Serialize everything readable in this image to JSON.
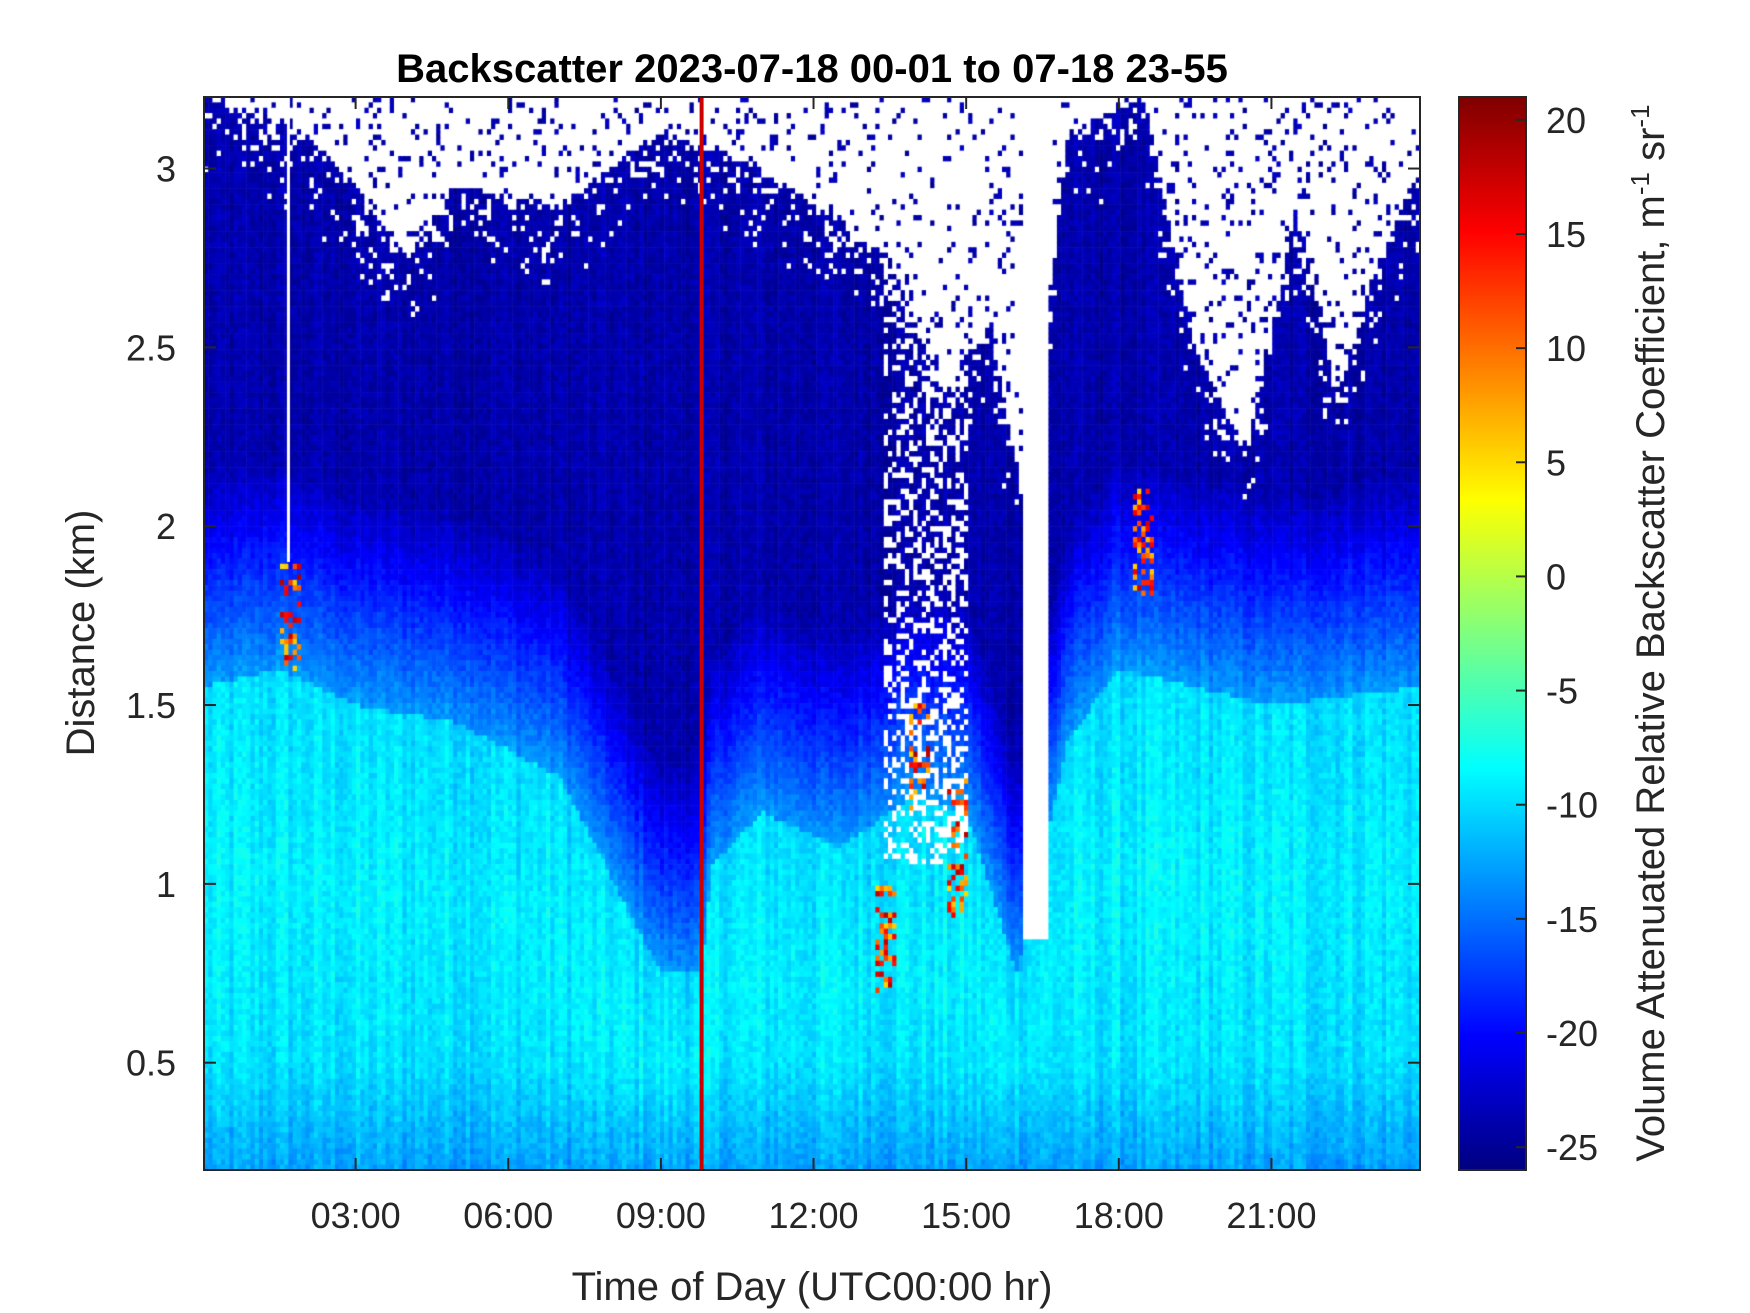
{
  "chart_data": {
    "type": "heatmap",
    "title": "Backscatter 2023-07-18 00-01 to 07-18 23-55",
    "xlabel": "Time of Day (UTC00:00 hr)",
    "ylabel": "Distance (km)",
    "colorbar_label": "Volume Attenuated Relative Backscatter Coefficient, m",
    "colorbar_label_parts": [
      "Volume Attenuated Relative Backscatter Coefficient, m",
      "-1",
      " sr",
      "-1"
    ],
    "colormap": "jet",
    "x_range_hours": [
      0.02,
      23.92
    ],
    "y_range_km": [
      0.2,
      3.2
    ],
    "color_range": [
      -26,
      21
    ],
    "x_ticks": [
      {
        "hour": 3,
        "label": "03:00"
      },
      {
        "hour": 6,
        "label": "06:00"
      },
      {
        "hour": 9,
        "label": "09:00"
      },
      {
        "hour": 12,
        "label": "12:00"
      },
      {
        "hour": 15,
        "label": "15:00"
      },
      {
        "hour": 18,
        "label": "18:00"
      },
      {
        "hour": 21,
        "label": "21:00"
      }
    ],
    "y_ticks": [
      {
        "km": 0.5,
        "label": "0.5"
      },
      {
        "km": 1,
        "label": "1"
      },
      {
        "km": 1.5,
        "label": "1.5"
      },
      {
        "km": 2,
        "label": "2"
      },
      {
        "km": 2.5,
        "label": "2.5"
      },
      {
        "km": 3,
        "label": "3"
      }
    ],
    "colorbar_ticks": [
      {
        "value": 20,
        "label": "20"
      },
      {
        "value": 15,
        "label": "15"
      },
      {
        "value": 10,
        "label": "10"
      },
      {
        "value": 5,
        "label": "5"
      },
      {
        "value": 0,
        "label": "0"
      },
      {
        "value": -5,
        "label": "-5"
      },
      {
        "value": -10,
        "label": "-10"
      },
      {
        "value": -15,
        "label": "-15"
      },
      {
        "value": -20,
        "label": "-20"
      },
      {
        "value": -25,
        "label": "-25"
      }
    ],
    "marker_line": {
      "hour": 9.8,
      "color": "#cc0000"
    },
    "boundary_layer_top_km": [
      [
        0.0,
        1.55
      ],
      [
        1.5,
        1.6
      ],
      [
        3.0,
        1.5
      ],
      [
        5.0,
        1.45
      ],
      [
        7.0,
        1.3
      ],
      [
        9.0,
        0.75
      ],
      [
        9.8,
        0.75
      ],
      [
        10.0,
        1.05
      ],
      [
        11.0,
        1.2
      ],
      [
        12.5,
        1.1
      ],
      [
        14.0,
        1.25
      ],
      [
        15.0,
        1.2
      ],
      [
        16.0,
        0.75
      ],
      [
        17.0,
        1.4
      ],
      [
        18.0,
        1.6
      ],
      [
        19.5,
        1.55
      ],
      [
        21.0,
        1.5
      ],
      [
        23.9,
        1.55
      ]
    ],
    "signal_top_km": [
      [
        0.0,
        3.2
      ],
      [
        2.0,
        3.1
      ],
      [
        3.0,
        2.95
      ],
      [
        4.0,
        2.75
      ],
      [
        5.0,
        2.95
      ],
      [
        7.0,
        2.9
      ],
      [
        9.0,
        3.1
      ],
      [
        11.0,
        3.0
      ],
      [
        12.0,
        2.9
      ],
      [
        13.5,
        2.75
      ],
      [
        14.5,
        2.4
      ],
      [
        15.5,
        2.55
      ],
      [
        16.2,
        2.0
      ],
      [
        17.0,
        3.1
      ],
      [
        18.5,
        3.2
      ],
      [
        19.5,
        2.5
      ],
      [
        20.5,
        2.2
      ],
      [
        21.5,
        2.9
      ],
      [
        22.3,
        2.35
      ],
      [
        23.0,
        2.7
      ],
      [
        23.9,
        3.0
      ]
    ],
    "strong_echoes": [
      {
        "hour": 1.7,
        "km_from": 1.6,
        "km_to": 1.9
      },
      {
        "hour": 13.4,
        "km_from": 0.7,
        "km_to": 1.0
      },
      {
        "hour": 14.1,
        "km_from": 1.2,
        "km_to": 1.5
      },
      {
        "hour": 14.8,
        "km_from": 0.9,
        "km_to": 1.3
      },
      {
        "hour": 18.5,
        "km_from": 1.8,
        "km_to": 2.1
      }
    ]
  }
}
